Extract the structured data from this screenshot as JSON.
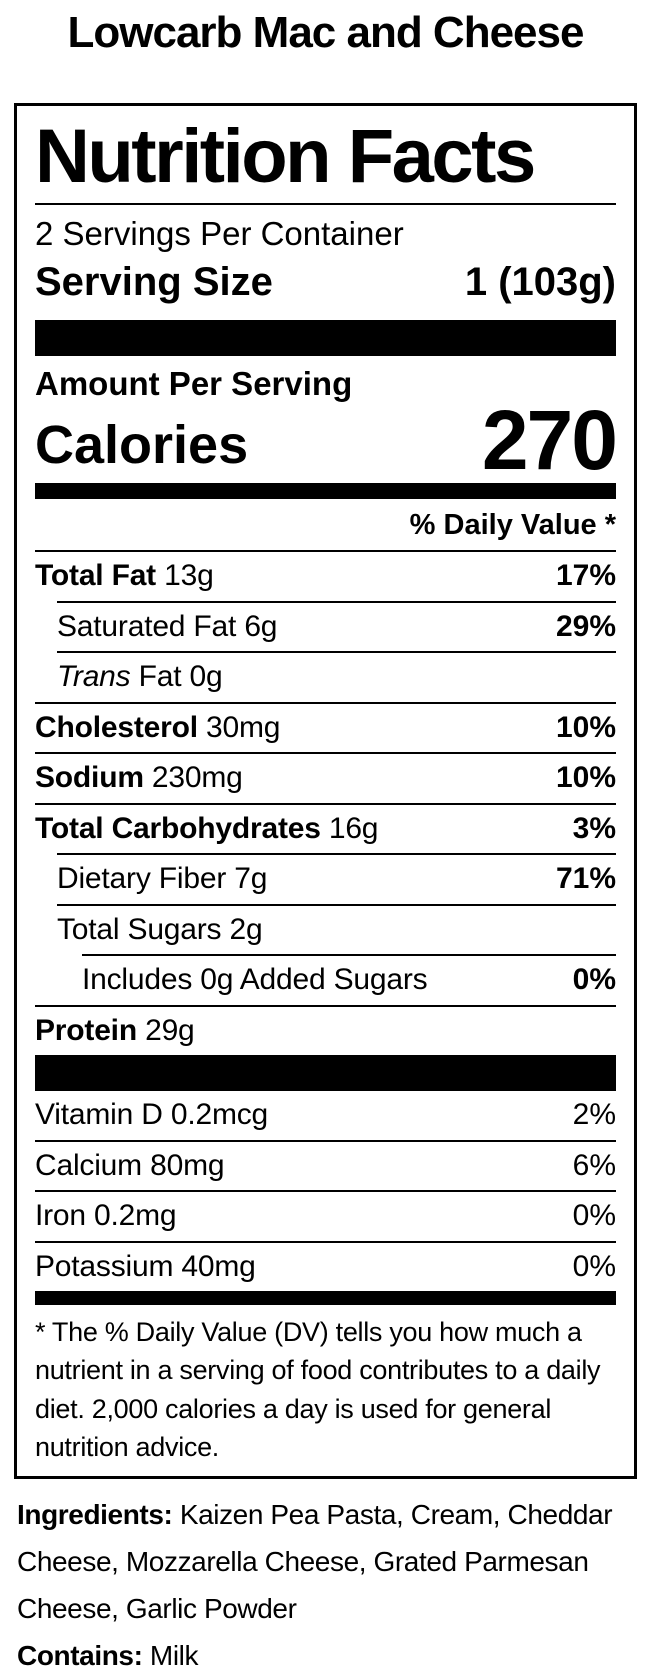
{
  "colors": {
    "ink": "#000000",
    "background": "#ffffff"
  },
  "page": {
    "title": "Lowcarb Mac and Cheese"
  },
  "label": {
    "heading": "Nutrition Facts",
    "servings_per_container": "2 Servings Per Container",
    "serving_size_label": "Serving Size",
    "serving_size_value": "1 (103g)",
    "amount_per_serving": "Amount Per Serving",
    "calories_label": "Calories",
    "calories_value": "270",
    "daily_value_header": "% Daily Value *",
    "rows": [
      {
        "indent": 0,
        "name": "Total Fat",
        "name_bold": true,
        "amount": "13g",
        "daily_value": "17%",
        "daily_value_bold": true
      },
      {
        "indent": 1,
        "name": "Saturated Fat",
        "name_bold": false,
        "amount": "6g",
        "daily_value": "29%",
        "daily_value_bold": true
      },
      {
        "indent": 1,
        "italic_prefix": "Trans",
        "name": " Fat",
        "name_bold": false,
        "amount": "0g",
        "daily_value": "",
        "daily_value_bold": false
      },
      {
        "indent": 0,
        "name": "Cholesterol",
        "name_bold": true,
        "amount": "30mg",
        "daily_value": "10%",
        "daily_value_bold": true
      },
      {
        "indent": 0,
        "name": "Sodium",
        "name_bold": true,
        "amount": "230mg",
        "daily_value": "10%",
        "daily_value_bold": true
      },
      {
        "indent": 0,
        "name": "Total Carbohydrates",
        "name_bold": true,
        "amount": "16g",
        "daily_value": "3%",
        "daily_value_bold": true
      },
      {
        "indent": 1,
        "name": "Dietary Fiber",
        "name_bold": false,
        "amount": "7g",
        "daily_value": "71%",
        "daily_value_bold": true
      },
      {
        "indent": 1,
        "name": "Total Sugars",
        "name_bold": false,
        "amount": "2g",
        "daily_value": "",
        "daily_value_bold": false
      },
      {
        "indent": 2,
        "name": "Includes 0g Added Sugars",
        "name_bold": false,
        "amount": "",
        "daily_value": "0%",
        "daily_value_bold": true
      },
      {
        "indent": 0,
        "name": "Protein",
        "name_bold": true,
        "amount": "29g",
        "daily_value": "",
        "daily_value_bold": false
      }
    ],
    "vitamins": [
      {
        "indent": 0,
        "name": "Vitamin D",
        "name_bold": false,
        "amount": "0.2mcg",
        "daily_value": "2%",
        "daily_value_bold": false
      },
      {
        "indent": 0,
        "name": "Calcium",
        "name_bold": false,
        "amount": "80mg",
        "daily_value": "6%",
        "daily_value_bold": false
      },
      {
        "indent": 0,
        "name": "Iron",
        "name_bold": false,
        "amount": "0.2mg",
        "daily_value": "0%",
        "daily_value_bold": false
      },
      {
        "indent": 0,
        "name": "Potassium",
        "name_bold": false,
        "amount": "40mg",
        "daily_value": "0%",
        "daily_value_bold": false
      }
    ],
    "footnote": "* The % Daily Value (DV) tells you how much a nutrient in a serving of food contributes to a daily diet. 2,000 calories a day is used for general nutrition advice."
  },
  "ingredients": {
    "label": "Ingredients:",
    "text": " Kaizen Pea Pasta, Cream, Cheddar Cheese, Mozzarella Cheese, Grated Parmesan Cheese, Garlic Powder"
  },
  "contains": {
    "label": "Contains:",
    "text": " Milk"
  }
}
